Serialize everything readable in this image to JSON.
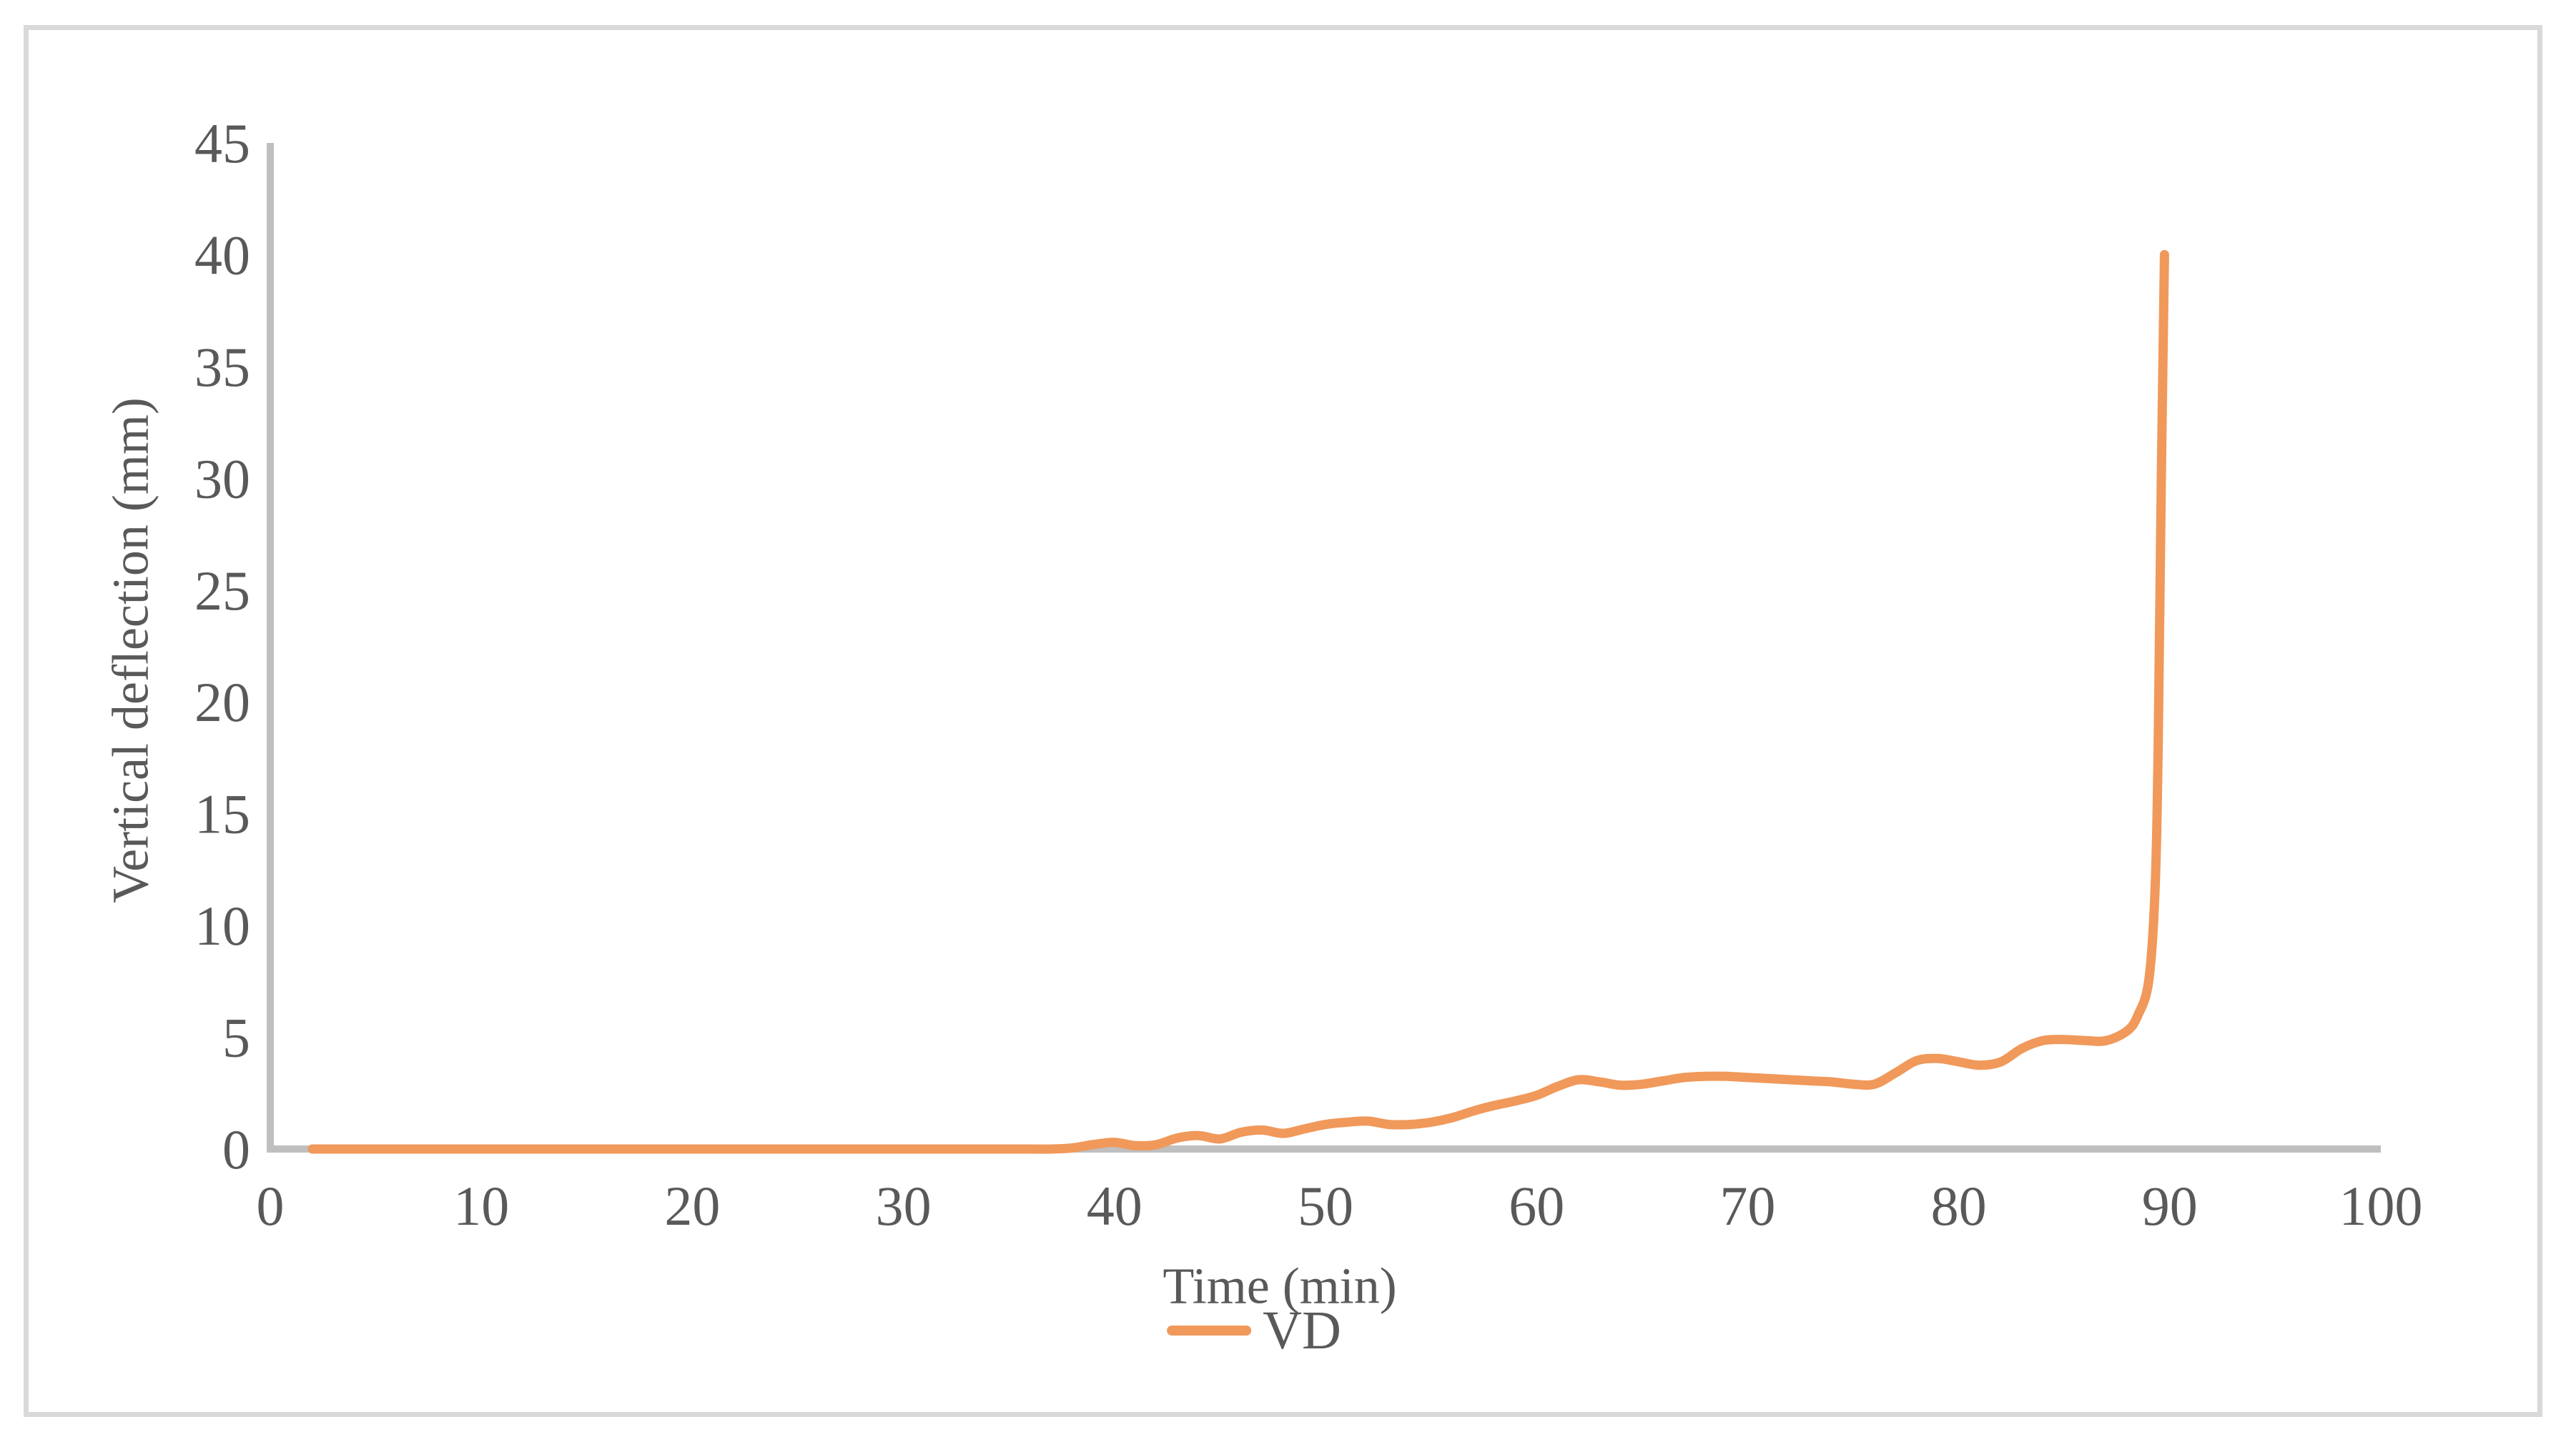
{
  "figure": {
    "background": "#FFFFFF",
    "border_color": "#D9D9D9"
  },
  "colors": {
    "axis_line": "#BFBFBF",
    "tick_text": "#595959",
    "series_orange": "#F0995B"
  },
  "chart_data": {
    "type": "line",
    "title": "",
    "xlabel": "Time (min)",
    "ylabel": "Vertical deflection (mm)",
    "xlim": [
      0,
      100
    ],
    "ylim": [
      0,
      45
    ],
    "x_ticks": [
      0,
      10,
      20,
      30,
      40,
      50,
      60,
      70,
      80,
      90,
      100
    ],
    "y_ticks": [
      0,
      5,
      10,
      15,
      20,
      25,
      30,
      35,
      40,
      45
    ],
    "grid": false,
    "legend_position": "bottom",
    "series": [
      {
        "name": "VD",
        "color": "#F0995B",
        "points": [
          [
            2,
            0
          ],
          [
            4,
            0
          ],
          [
            6,
            0
          ],
          [
            8,
            0
          ],
          [
            10,
            0
          ],
          [
            12,
            0
          ],
          [
            14,
            0
          ],
          [
            16,
            0
          ],
          [
            18,
            0
          ],
          [
            20,
            0
          ],
          [
            22,
            0
          ],
          [
            24,
            0
          ],
          [
            26,
            0
          ],
          [
            28,
            0
          ],
          [
            30,
            0
          ],
          [
            32,
            0
          ],
          [
            34,
            0
          ],
          [
            36,
            0
          ],
          [
            37,
            0
          ],
          [
            38,
            0.05
          ],
          [
            39,
            0.2
          ],
          [
            40,
            0.3
          ],
          [
            41,
            0.15
          ],
          [
            42,
            0.2
          ],
          [
            43,
            0.5
          ],
          [
            44,
            0.6
          ],
          [
            45,
            0.45
          ],
          [
            46,
            0.75
          ],
          [
            47,
            0.85
          ],
          [
            48,
            0.7
          ],
          [
            49,
            0.9
          ],
          [
            50,
            1.1
          ],
          [
            51,
            1.2
          ],
          [
            52,
            1.25
          ],
          [
            53,
            1.1
          ],
          [
            54,
            1.1
          ],
          [
            55,
            1.2
          ],
          [
            56,
            1.4
          ],
          [
            57,
            1.7
          ],
          [
            58,
            1.95
          ],
          [
            59,
            2.15
          ],
          [
            60,
            2.4
          ],
          [
            61,
            2.8
          ],
          [
            62,
            3.1
          ],
          [
            63,
            3.0
          ],
          [
            64,
            2.85
          ],
          [
            65,
            2.9
          ],
          [
            66,
            3.05
          ],
          [
            67,
            3.2
          ],
          [
            68,
            3.25
          ],
          [
            69,
            3.25
          ],
          [
            70,
            3.2
          ],
          [
            71,
            3.15
          ],
          [
            72,
            3.1
          ],
          [
            73,
            3.05
          ],
          [
            74,
            3.0
          ],
          [
            75,
            2.9
          ],
          [
            76,
            2.9
          ],
          [
            77,
            3.4
          ],
          [
            78,
            3.95
          ],
          [
            79,
            4.05
          ],
          [
            80,
            3.9
          ],
          [
            81,
            3.75
          ],
          [
            82,
            3.9
          ],
          [
            83,
            4.5
          ],
          [
            84,
            4.85
          ],
          [
            85,
            4.9
          ],
          [
            86,
            4.85
          ],
          [
            87,
            4.85
          ],
          [
            88,
            5.3
          ],
          [
            88.5,
            6.0
          ],
          [
            89,
            7.5
          ],
          [
            89.3,
            11.5
          ],
          [
            89.45,
            18
          ],
          [
            89.6,
            30
          ],
          [
            89.75,
            40
          ]
        ]
      }
    ]
  }
}
